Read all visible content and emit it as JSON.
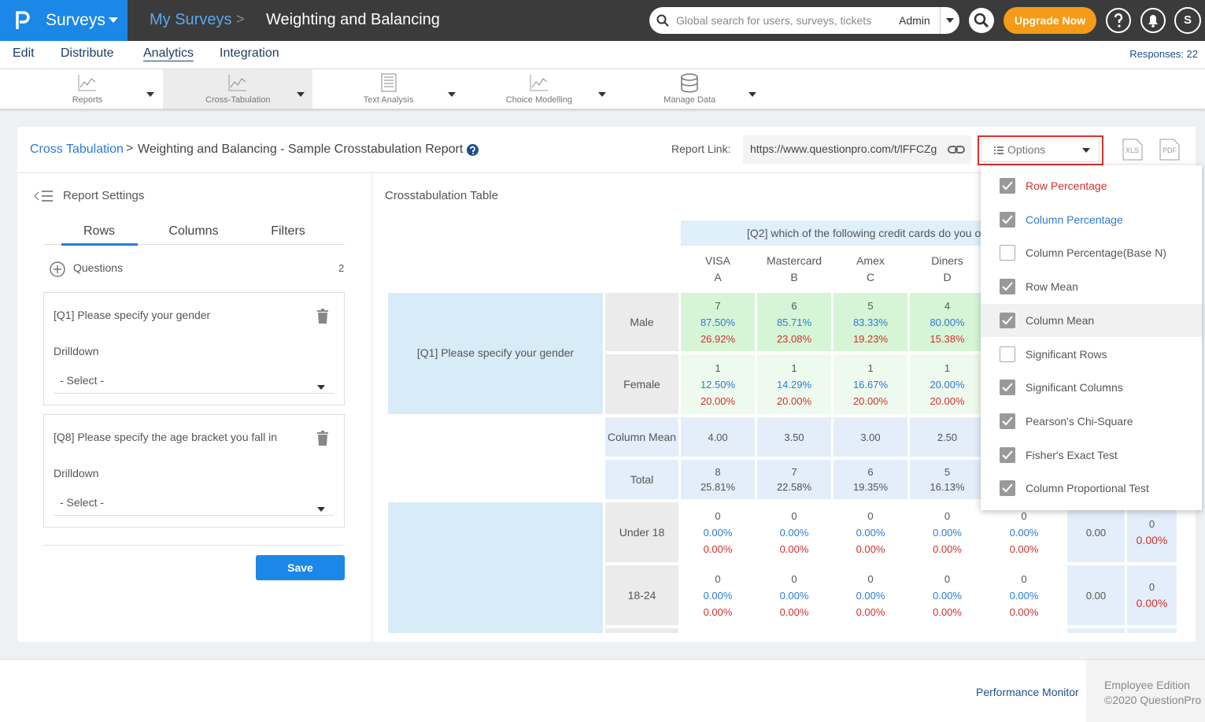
{
  "topbar": {
    "brand": "Surveys",
    "breadcrumb": [
      "My Surveys",
      "Weighting and Balancing"
    ],
    "search_placeholder": "Global search for users, surveys, tickets",
    "role": "Admin",
    "upgrade": "Upgrade Now",
    "avatar": "S"
  },
  "nav": {
    "items": [
      "Edit",
      "Distribute",
      "Analytics",
      "Integration"
    ],
    "responses": "Responses: 22"
  },
  "toolbar": {
    "items": [
      "Reports",
      "Cross-Tabulation",
      "Text Analysis",
      "Choice Modelling",
      "Manage Data"
    ]
  },
  "header": {
    "breadcrumb": "Cross Tabulation",
    "title": "Weighting and Balancing - Sample Crosstabulation Report",
    "report_link_label": "Report Link:",
    "report_link": "https://www.questionpro.com/t/lFFCZg",
    "options": "Options",
    "xls": "XLS",
    "pdf": "PDF"
  },
  "settings": {
    "title": "Report Settings",
    "tabs": [
      "Rows",
      "Columns",
      "Filters"
    ],
    "questions_label": "Questions",
    "questions_count": "2",
    "questions": [
      {
        "text": "[Q1] Please specify your gender",
        "drilldown": "Drilldown",
        "select": "- Select -"
      },
      {
        "text": "[Q8] Please specify the age bracket you fall in",
        "drilldown": "Drilldown",
        "select": "- Select -"
      }
    ],
    "save": "Save"
  },
  "table": {
    "title": "Crosstabulation Table",
    "column_header": "[Q2] which of the following credit cards do you o",
    "columns": [
      [
        "VISA",
        "A"
      ],
      [
        "Mastercard",
        "B"
      ],
      [
        "Amex",
        "C"
      ],
      [
        "Diners",
        "D"
      ]
    ],
    "groups": [
      "[Q1] Please specify your gender"
    ],
    "rows": [
      {
        "label": "Male",
        "cells": [
          [
            "7",
            "87.50%",
            "26.92%"
          ],
          [
            "6",
            "85.71%",
            "23.08%"
          ],
          [
            "5",
            "83.33%",
            "19.23%"
          ],
          [
            "4",
            "80.00%",
            "15.38%"
          ]
        ]
      },
      {
        "label": "Female",
        "cells": [
          [
            "1",
            "12.50%",
            "20.00%"
          ],
          [
            "1",
            "14.29%",
            "20.00%"
          ],
          [
            "1",
            "16.67%",
            "20.00%"
          ],
          [
            "1",
            "20.00%",
            "20.00%"
          ]
        ]
      },
      {
        "label": "Column Mean",
        "cells": [
          [
            "4.00"
          ],
          [
            "3.50"
          ],
          [
            "3.00"
          ],
          [
            "2.50"
          ]
        ]
      },
      {
        "label": "Total",
        "cells": [
          [
            "8",
            "25.81%"
          ],
          [
            "7",
            "22.58%"
          ],
          [
            "6",
            "19.35%"
          ],
          [
            "5",
            "16.13%"
          ]
        ]
      },
      {
        "label": "Under 18",
        "cells": [
          [
            "0",
            "0.00%",
            "0.00%"
          ],
          [
            "0",
            "0.00%",
            "0.00%"
          ],
          [
            "0",
            "0.00%",
            "0.00%"
          ],
          [
            "0",
            "0.00%",
            "0.00%"
          ],
          [
            "0",
            "0.00%",
            "0.00%"
          ],
          [
            "0.00"
          ],
          [
            "0",
            "0.00%"
          ]
        ]
      },
      {
        "label": "18-24",
        "cells": [
          [
            "0",
            "0.00%",
            "0.00%"
          ],
          [
            "0",
            "0.00%",
            "0.00%"
          ],
          [
            "0",
            "0.00%",
            "0.00%"
          ],
          [
            "0",
            "0.00%",
            "0.00%"
          ],
          [
            "0",
            "0.00%",
            "0.00%"
          ],
          [
            "0.00"
          ],
          [
            "0",
            "0.00%"
          ]
        ]
      }
    ]
  },
  "options_menu": [
    {
      "label": "Row Percentage",
      "checked": true
    },
    {
      "label": "Column Percentage",
      "checked": true
    },
    {
      "label": "Column Percentage(Base N)",
      "checked": false
    },
    {
      "label": "Row Mean",
      "checked": true
    },
    {
      "label": "Column Mean",
      "checked": true
    },
    {
      "label": "Significant Rows",
      "checked": false
    },
    {
      "label": "Significant Columns",
      "checked": true
    },
    {
      "label": "Pearson's Chi-Square",
      "checked": true
    },
    {
      "label": "Fisher's Exact Test",
      "checked": true
    },
    {
      "label": "Column Proportional Test",
      "checked": true
    }
  ],
  "footer": {
    "link": "Performance Monitor",
    "edition": "Employee Edition",
    "copyright": "©2020 QuestionPro"
  }
}
